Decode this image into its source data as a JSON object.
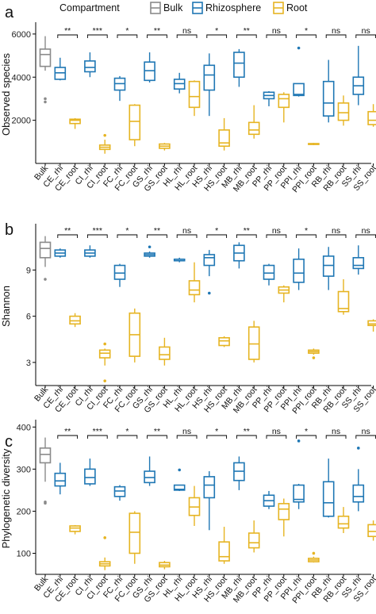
{
  "legend": {
    "title": "Compartment",
    "items": [
      {
        "label": "Bulk",
        "color": "#8a8a8a"
      },
      {
        "label": "Rhizosphere",
        "color": "#1f77b4"
      },
      {
        "label": "Root",
        "color": "#e6b422"
      }
    ]
  },
  "significance": [
    "**",
    "***",
    "*",
    "**",
    "ns",
    "*",
    "**",
    "ns",
    "*",
    "ns",
    "ns"
  ],
  "chart_data": [
    {
      "type": "box",
      "panel": "a",
      "ylabel": "Observed species",
      "yticks": [
        2000,
        4000,
        6000
      ],
      "ylim": [
        0,
        6400
      ],
      "categories": [
        "Bulk",
        "CE_rhi",
        "CE_root",
        "CI_rhi",
        "CI_root",
        "FC_rhi",
        "FC_root",
        "GS_rhi",
        "GS_root",
        "HL_rhi",
        "HL_root",
        "HS_rhi",
        "HS_root",
        "MB_rhi",
        "MB_root",
        "PP_rhi",
        "PP_root",
        "PPI_rhi",
        "PPI_root",
        "RB_rhi",
        "RB_root",
        "SS_rhi",
        "SS_root"
      ],
      "boxes": [
        {
          "group": "Bulk",
          "min": 4300,
          "q1": 4500,
          "median": 5050,
          "q3": 5300,
          "max": 5900,
          "outliers": [
            3000,
            2850
          ]
        },
        {
          "group": "Rhizosphere",
          "min": 3850,
          "q1": 3900,
          "median": 4200,
          "q3": 4450,
          "max": 4900,
          "outliers": []
        },
        {
          "group": "Root",
          "min": 1600,
          "q1": 1850,
          "median": 2000,
          "q3": 2050,
          "max": 2100,
          "outliers": []
        },
        {
          "group": "Rhizosphere",
          "min": 4000,
          "q1": 4250,
          "median": 4450,
          "q3": 4750,
          "max": 5150,
          "outliers": []
        },
        {
          "group": "Root",
          "min": 450,
          "q1": 650,
          "median": 750,
          "q3": 850,
          "max": 1100,
          "outliers": [
            1300
          ]
        },
        {
          "group": "Rhizosphere",
          "min": 2900,
          "q1": 3400,
          "median": 3700,
          "q3": 3950,
          "max": 4050,
          "outliers": []
        },
        {
          "group": "Root",
          "min": 800,
          "q1": 1100,
          "median": 1950,
          "q3": 2700,
          "max": 2750,
          "outliers": []
        },
        {
          "group": "Rhizosphere",
          "min": 3750,
          "q1": 3850,
          "median": 4300,
          "q3": 4700,
          "max": 5150,
          "outliers": []
        },
        {
          "group": "Root",
          "min": 600,
          "q1": 700,
          "median": 800,
          "q3": 900,
          "max": 950,
          "outliers": []
        },
        {
          "group": "Rhizosphere",
          "min": 3250,
          "q1": 3450,
          "median": 3700,
          "q3": 3900,
          "max": 4200,
          "outliers": []
        },
        {
          "group": "Root",
          "min": 2200,
          "q1": 2600,
          "median": 3100,
          "q3": 3800,
          "max": 3850,
          "outliers": []
        },
        {
          "group": "Rhizosphere",
          "min": 2200,
          "q1": 3400,
          "median": 4100,
          "q3": 4550,
          "max": 5100,
          "outliers": []
        },
        {
          "group": "Root",
          "min": 600,
          "q1": 800,
          "median": 950,
          "q3": 1550,
          "max": 2100,
          "outliers": []
        },
        {
          "group": "Rhizosphere",
          "min": 3550,
          "q1": 4000,
          "median": 4650,
          "q3": 5150,
          "max": 5300,
          "outliers": []
        },
        {
          "group": "Root",
          "min": 1150,
          "q1": 1350,
          "median": 1550,
          "q3": 1900,
          "max": 2700,
          "outliers": []
        },
        {
          "group": "Rhizosphere",
          "min": 2650,
          "q1": 3000,
          "median": 3150,
          "q3": 3300,
          "max": 3350,
          "outliers": []
        },
        {
          "group": "Root",
          "min": 1900,
          "q1": 2600,
          "median": 3000,
          "q3": 3200,
          "max": 3300,
          "outliers": []
        },
        {
          "group": "Rhizosphere",
          "min": 3100,
          "q1": 3150,
          "median": 3200,
          "q3": 3700,
          "max": 3700,
          "outliers": [
            5350
          ]
        },
        {
          "group": "Root",
          "min": 850,
          "q1": 880,
          "median": 900,
          "q3": 920,
          "max": 950,
          "outliers": []
        },
        {
          "group": "Rhizosphere",
          "min": 1900,
          "q1": 2200,
          "median": 2800,
          "q3": 3800,
          "max": 4800,
          "outliers": []
        },
        {
          "group": "Root",
          "min": 1750,
          "q1": 2000,
          "median": 2350,
          "q3": 2800,
          "max": 3150,
          "outliers": []
        },
        {
          "group": "Rhizosphere",
          "min": 2700,
          "q1": 3200,
          "median": 3600,
          "q3": 4000,
          "max": 5450,
          "outliers": []
        },
        {
          "group": "Root",
          "min": 1700,
          "q1": 1800,
          "median": 2000,
          "q3": 2400,
          "max": 2750,
          "outliers": []
        }
      ]
    },
    {
      "type": "box",
      "panel": "b",
      "ylabel": "Shannon",
      "yticks": [
        3,
        6,
        9
      ],
      "ylim": [
        1.5,
        11.8
      ],
      "categories": [
        "Bulk",
        "CE_rhi",
        "CE_root",
        "CI_rhi",
        "CI_root",
        "FC_rhi",
        "FC_root",
        "GS_rhi",
        "GS_root",
        "HL_rhi",
        "HL_root",
        "HS_rhi",
        "HS_root",
        "MB_rhi",
        "MB_root",
        "PP_rhi",
        "PP_root",
        "PPI_rhi",
        "PPI_root",
        "RB_rhi",
        "RB_root",
        "SS_rhi",
        "SS_root"
      ],
      "boxes": [
        {
          "group": "Bulk",
          "min": 9.2,
          "q1": 9.8,
          "median": 10.4,
          "q3": 10.8,
          "max": 11.2,
          "outliers": [
            8.4
          ]
        },
        {
          "group": "Rhizosphere",
          "min": 9.8,
          "q1": 9.9,
          "median": 10.1,
          "q3": 10.3,
          "max": 10.4,
          "outliers": []
        },
        {
          "group": "Root",
          "min": 5.3,
          "q1": 5.5,
          "median": 5.7,
          "q3": 6.0,
          "max": 6.2,
          "outliers": []
        },
        {
          "group": "Rhizosphere",
          "min": 9.8,
          "q1": 9.9,
          "median": 10.1,
          "q3": 10.3,
          "max": 10.6,
          "outliers": []
        },
        {
          "group": "Root",
          "min": 2.8,
          "q1": 3.3,
          "median": 3.6,
          "q3": 3.8,
          "max": 3.9,
          "outliers": [
            4.2,
            1.8
          ]
        },
        {
          "group": "Rhizosphere",
          "min": 7.9,
          "q1": 8.4,
          "median": 8.8,
          "q3": 9.3,
          "max": 9.4,
          "outliers": []
        },
        {
          "group": "Root",
          "min": 3.0,
          "q1": 3.4,
          "median": 4.8,
          "q3": 6.2,
          "max": 6.5,
          "outliers": []
        },
        {
          "group": "Rhizosphere",
          "min": 9.8,
          "q1": 9.9,
          "median": 10.0,
          "q3": 10.1,
          "max": 10.2,
          "outliers": [
            10.5
          ]
        },
        {
          "group": "Root",
          "min": 2.8,
          "q1": 3.2,
          "median": 3.5,
          "q3": 4.0,
          "max": 4.6,
          "outliers": []
        },
        {
          "group": "Rhizosphere",
          "min": 9.5,
          "q1": 9.6,
          "median": 9.7,
          "q3": 9.7,
          "max": 9.8,
          "outliers": []
        },
        {
          "group": "Root",
          "min": 6.9,
          "q1": 7.4,
          "median": 7.7,
          "q3": 8.3,
          "max": 9.5,
          "outliers": []
        },
        {
          "group": "Rhizosphere",
          "min": 8.6,
          "q1": 9.3,
          "median": 9.8,
          "q3": 10.0,
          "max": 10.3,
          "outliers": [
            7.5
          ]
        },
        {
          "group": "Root",
          "min": 4.0,
          "q1": 4.1,
          "median": 4.4,
          "q3": 4.6,
          "max": 4.7,
          "outliers": []
        },
        {
          "group": "Rhizosphere",
          "min": 9.1,
          "q1": 9.6,
          "median": 10.1,
          "q3": 10.6,
          "max": 10.8,
          "outliers": []
        },
        {
          "group": "Root",
          "min": 3.0,
          "q1": 3.2,
          "median": 4.2,
          "q3": 5.3,
          "max": 5.7,
          "outliers": []
        },
        {
          "group": "Rhizosphere",
          "min": 8.0,
          "q1": 8.4,
          "median": 8.8,
          "q3": 9.3,
          "max": 9.4,
          "outliers": []
        },
        {
          "group": "Root",
          "min": 6.9,
          "q1": 7.5,
          "median": 7.7,
          "q3": 7.9,
          "max": 8.0,
          "outliers": []
        },
        {
          "group": "Rhizosphere",
          "min": 7.7,
          "q1": 8.2,
          "median": 8.8,
          "q3": 9.7,
          "max": 10.4,
          "outliers": []
        },
        {
          "group": "Root",
          "min": 3.5,
          "q1": 3.6,
          "median": 3.7,
          "q3": 3.8,
          "max": 3.9,
          "outliers": [
            3.3
          ]
        },
        {
          "group": "Rhizosphere",
          "min": 7.7,
          "q1": 8.6,
          "median": 9.3,
          "q3": 9.9,
          "max": 10.5,
          "outliers": []
        },
        {
          "group": "Root",
          "min": 6.1,
          "q1": 6.3,
          "median": 6.5,
          "q3": 7.6,
          "max": 8.4,
          "outliers": []
        },
        {
          "group": "Rhizosphere",
          "min": 8.7,
          "q1": 9.1,
          "median": 9.3,
          "q3": 9.8,
          "max": 10.6,
          "outliers": []
        },
        {
          "group": "Root",
          "min": 5.0,
          "q1": 5.4,
          "median": 5.5,
          "q3": 5.7,
          "max": 5.8,
          "outliers": []
        }
      ]
    },
    {
      "type": "box",
      "panel": "c",
      "ylabel": "Phylogenetic diversity",
      "yticks": [
        100,
        200,
        300,
        400
      ],
      "ylim": [
        50,
        410
      ],
      "categories": [
        "Bulk",
        "CE_rhi",
        "CE_root",
        "CI_rhi",
        "CI_root",
        "FC_rhi",
        "FC_root",
        "GS_rhi",
        "GS_root",
        "HL_rhi",
        "HL_root",
        "HS_rhi",
        "HS_root",
        "MB_rhi",
        "MB_root",
        "PP_rhi",
        "PP_root",
        "PPI_rhi",
        "PPI_root",
        "RB_rhi",
        "RB_root",
        "SS_rhi",
        "SS_root"
      ],
      "boxes": [
        {
          "group": "Bulk",
          "min": 270,
          "q1": 315,
          "median": 335,
          "q3": 350,
          "max": 375,
          "outliers": [
            222,
            219
          ]
        },
        {
          "group": "Rhizosphere",
          "min": 240,
          "q1": 260,
          "median": 272,
          "q3": 290,
          "max": 315,
          "outliers": []
        },
        {
          "group": "Root",
          "min": 145,
          "q1": 152,
          "median": 160,
          "q3": 165,
          "max": 167,
          "outliers": []
        },
        {
          "group": "Rhizosphere",
          "min": 260,
          "q1": 265,
          "median": 280,
          "q3": 300,
          "max": 325,
          "outliers": []
        },
        {
          "group": "Root",
          "min": 60,
          "q1": 70,
          "median": 75,
          "q3": 80,
          "max": 90,
          "outliers": [
            137
          ]
        },
        {
          "group": "Rhizosphere",
          "min": 225,
          "q1": 235,
          "median": 248,
          "q3": 258,
          "max": 262,
          "outliers": []
        },
        {
          "group": "Root",
          "min": 75,
          "q1": 100,
          "median": 150,
          "q3": 195,
          "max": 200,
          "outliers": []
        },
        {
          "group": "Rhizosphere",
          "min": 260,
          "q1": 268,
          "median": 280,
          "q3": 295,
          "max": 330,
          "outliers": []
        },
        {
          "group": "Root",
          "min": 62,
          "q1": 68,
          "median": 72,
          "q3": 78,
          "max": 82,
          "outliers": []
        },
        {
          "group": "Rhizosphere",
          "min": 248,
          "q1": 250,
          "median": 252,
          "q3": 262,
          "max": 262,
          "outliers": [
            298
          ]
        },
        {
          "group": "Root",
          "min": 165,
          "q1": 190,
          "median": 210,
          "q3": 232,
          "max": 260,
          "outliers": []
        },
        {
          "group": "Rhizosphere",
          "min": 155,
          "q1": 232,
          "median": 262,
          "q3": 282,
          "max": 295,
          "outliers": []
        },
        {
          "group": "Root",
          "min": 75,
          "q1": 82,
          "median": 92,
          "q3": 127,
          "max": 163,
          "outliers": []
        },
        {
          "group": "Rhizosphere",
          "min": 250,
          "q1": 273,
          "median": 295,
          "q3": 315,
          "max": 330,
          "outliers": []
        },
        {
          "group": "Root",
          "min": 102,
          "q1": 113,
          "median": 125,
          "q3": 148,
          "max": 178,
          "outliers": []
        },
        {
          "group": "Rhizosphere",
          "min": 205,
          "q1": 212,
          "median": 225,
          "q3": 238,
          "max": 248,
          "outliers": []
        },
        {
          "group": "Root",
          "min": 140,
          "q1": 180,
          "median": 205,
          "q3": 218,
          "max": 230,
          "outliers": []
        },
        {
          "group": "Rhizosphere",
          "min": 205,
          "q1": 222,
          "median": 228,
          "q3": 262,
          "max": 265,
          "outliers": [
            367
          ]
        },
        {
          "group": "Root",
          "min": 78,
          "q1": 80,
          "median": 84,
          "q3": 88,
          "max": 92,
          "outliers": [
            100
          ]
        },
        {
          "group": "Rhizosphere",
          "min": 185,
          "q1": 188,
          "median": 220,
          "q3": 270,
          "max": 325,
          "outliers": []
        },
        {
          "group": "Root",
          "min": 148,
          "q1": 160,
          "median": 170,
          "q3": 188,
          "max": 210,
          "outliers": []
        },
        {
          "group": "Rhizosphere",
          "min": 200,
          "q1": 222,
          "median": 235,
          "q3": 262,
          "max": 300,
          "outliers": [
            350
          ]
        },
        {
          "group": "Root",
          "min": 130,
          "q1": 140,
          "median": 152,
          "q3": 168,
          "max": 178,
          "outliers": []
        }
      ]
    }
  ]
}
